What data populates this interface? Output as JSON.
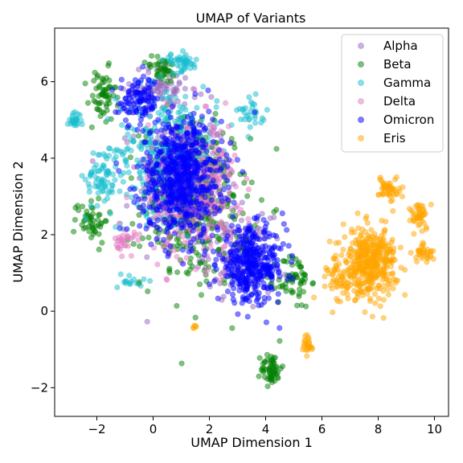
{
  "chart_data": {
    "type": "scatter",
    "title": "UMAP of Variants",
    "xlabel": "UMAP Dimension 1",
    "ylabel": "UMAP Dimension 2",
    "xlim": [
      -3.5,
      10.5
    ],
    "ylim": [
      -2.75,
      7.4
    ],
    "xticks": [
      -2,
      0,
      2,
      4,
      6,
      8,
      10
    ],
    "yticks": [
      -2,
      0,
      2,
      4,
      6
    ],
    "grid": false,
    "legend_position": "top-right",
    "marker_opacity": 0.5,
    "series": [
      {
        "name": "Alpha",
        "color": "#9467bd",
        "clusters": [
          {
            "center": [
              1.0,
              3.5
            ],
            "spread": [
              1.3,
              1.5
            ],
            "count": 260
          },
          {
            "center": [
              0.3,
              5.8
            ],
            "spread": [
              0.9,
              0.5
            ],
            "count": 80
          },
          {
            "center": [
              3.0,
              1.5
            ],
            "spread": [
              1.0,
              0.8
            ],
            "count": 120
          }
        ]
      },
      {
        "name": "Beta",
        "color": "#008000",
        "clusters": [
          {
            "center": [
              1.5,
              2.8
            ],
            "spread": [
              1.6,
              1.8
            ],
            "count": 320
          },
          {
            "center": [
              -1.8,
              5.6
            ],
            "spread": [
              0.4,
              0.6
            ],
            "count": 60
          },
          {
            "center": [
              -2.2,
              2.4
            ],
            "spread": [
              0.5,
              0.5
            ],
            "count": 50
          },
          {
            "center": [
              4.2,
              -1.5
            ],
            "spread": [
              0.3,
              0.35
            ],
            "count": 60
          },
          {
            "center": [
              5.0,
              0.8
            ],
            "spread": [
              0.5,
              0.6
            ],
            "count": 60
          },
          {
            "center": [
              0.3,
              6.3
            ],
            "spread": [
              0.5,
              0.3
            ],
            "count": 40
          }
        ]
      },
      {
        "name": "Gamma",
        "color": "#17becf",
        "clusters": [
          {
            "center": [
              0.5,
              4.2
            ],
            "spread": [
              1.5,
              1.4
            ],
            "count": 300
          },
          {
            "center": [
              -2.8,
              5.0
            ],
            "spread": [
              0.2,
              0.15
            ],
            "count": 25
          },
          {
            "center": [
              1.0,
              6.5
            ],
            "spread": [
              0.5,
              0.2
            ],
            "count": 45
          },
          {
            "center": [
              -1.8,
              3.5
            ],
            "spread": [
              0.5,
              0.7
            ],
            "count": 70
          },
          {
            "center": [
              3.5,
              5.2
            ],
            "spread": [
              0.4,
              0.3
            ],
            "count": 30
          },
          {
            "center": [
              -0.8,
              0.8
            ],
            "spread": [
              0.4,
              0.2
            ],
            "count": 15
          }
        ]
      },
      {
        "name": "Delta",
        "color": "#e377c2",
        "clusters": [
          {
            "center": [
              1.4,
              3.2
            ],
            "spread": [
              1.3,
              1.5
            ],
            "count": 380
          },
          {
            "center": [
              -1.0,
              1.8
            ],
            "spread": [
              0.3,
              0.3
            ],
            "count": 30
          }
        ]
      },
      {
        "name": "Omicron",
        "color": "#0000ff",
        "clusters": [
          {
            "center": [
              1.0,
              3.5
            ],
            "spread": [
              1.2,
              1.3
            ],
            "count": 650
          },
          {
            "center": [
              3.5,
              1.2
            ],
            "spread": [
              1.0,
              0.8
            ],
            "count": 380
          },
          {
            "center": [
              -0.5,
              5.5
            ],
            "spread": [
              0.6,
              0.5
            ],
            "count": 100
          }
        ]
      },
      {
        "name": "Eris",
        "color": "#ffa500",
        "clusters": [
          {
            "center": [
              7.7,
              1.3
            ],
            "spread": [
              0.8,
              0.7
            ],
            "count": 380
          },
          {
            "center": [
              8.4,
              3.2
            ],
            "spread": [
              0.3,
              0.3
            ],
            "count": 50
          },
          {
            "center": [
              9.5,
              2.5
            ],
            "spread": [
              0.3,
              0.3
            ],
            "count": 45
          },
          {
            "center": [
              9.6,
              1.5
            ],
            "spread": [
              0.3,
              0.2
            ],
            "count": 35
          },
          {
            "center": [
              5.5,
              -0.9
            ],
            "spread": [
              0.15,
              0.25
            ],
            "count": 25
          },
          {
            "center": [
              6.8,
              0.8
            ],
            "spread": [
              0.5,
              0.5
            ],
            "count": 60
          },
          {
            "center": [
              1.5,
              -0.4
            ],
            "spread": [
              0.1,
              0.05
            ],
            "count": 5
          }
        ]
      }
    ]
  }
}
